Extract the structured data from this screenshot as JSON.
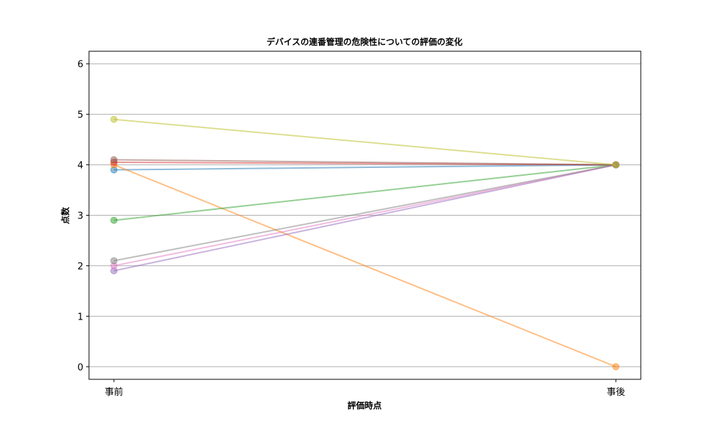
{
  "chart_data": {
    "type": "line",
    "title": "デバイスの連番管理の危険性についての評価の変化",
    "xlabel": "評価時点",
    "ylabel": "点数",
    "categories": [
      "事前",
      "事後"
    ],
    "ylim": [
      -0.25,
      6.25
    ],
    "yticks": [
      "0",
      "1",
      "2",
      "3",
      "4",
      "5",
      "6"
    ],
    "grid": "y",
    "series": [
      {
        "values": [
          3.9,
          4.0
        ],
        "color": "#1f77b4"
      },
      {
        "values": [
          4.0,
          0.0
        ],
        "color": "#ff7f0e"
      },
      {
        "values": [
          2.9,
          4.0
        ],
        "color": "#2ca02c"
      },
      {
        "values": [
          4.05,
          4.0
        ],
        "color": "#d62728"
      },
      {
        "values": [
          1.9,
          4.0
        ],
        "color": "#9467bd"
      },
      {
        "values": [
          4.1,
          4.0
        ],
        "color": "#8c564b"
      },
      {
        "values": [
          2.0,
          4.0
        ],
        "color": "#e377c2"
      },
      {
        "values": [
          2.1,
          4.0
        ],
        "color": "#7f7f7f"
      },
      {
        "values": [
          4.9,
          4.0
        ],
        "color": "#bcbd22"
      }
    ]
  }
}
